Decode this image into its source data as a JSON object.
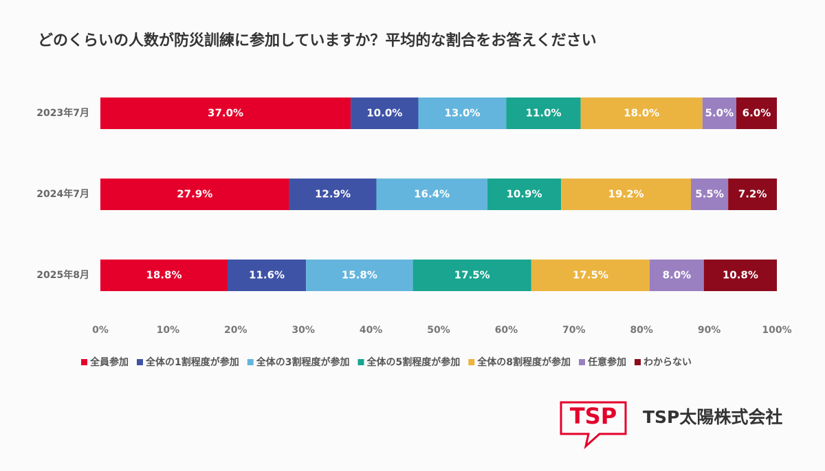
{
  "chart_data": {
    "type": "bar",
    "orientation": "horizontal",
    "stacked": true,
    "title": "どのくらいの人数が防災訓練に参加していますか？平均的な割合をお答えください",
    "categories": [
      "2023年7月",
      "2024年7月",
      "2025年8月"
    ],
    "series": [
      {
        "name": "全員参加",
        "color": "#e4002b",
        "values": [
          37.0,
          27.9,
          18.8
        ],
        "value_labels": [
          "37.0%",
          "27.9%",
          "18.8%"
        ]
      },
      {
        "name": "全体の1割程度が参加",
        "color": "#3f53a6",
        "values": [
          10.0,
          12.9,
          11.6
        ],
        "value_labels": [
          "10.0%",
          "12.9%",
          "11.6%"
        ]
      },
      {
        "name": "全体の3割程度が参加",
        "color": "#64b5dd",
        "values": [
          13.0,
          16.4,
          15.8
        ],
        "value_labels": [
          "13.0%",
          "16.4%",
          "15.8%"
        ]
      },
      {
        "name": "全体の5割程度が参加",
        "color": "#19a58f",
        "values": [
          11.0,
          10.9,
          17.5
        ],
        "value_labels": [
          "11.0%",
          "10.9%",
          "17.5%"
        ]
      },
      {
        "name": "全体の8割程度が参加",
        "color": "#ebb440",
        "values": [
          18.0,
          19.2,
          17.5
        ],
        "value_labels": [
          "18.0%",
          "19.2%",
          "17.5%"
        ]
      },
      {
        "name": "任意参加",
        "color": "#9a80c1",
        "values": [
          5.0,
          5.5,
          8.0
        ],
        "value_labels": [
          "5.0%",
          "5.5%",
          "8.0%"
        ]
      },
      {
        "name": "わからない",
        "color": "#8c0a1c",
        "values": [
          6.0,
          7.2,
          10.8
        ],
        "value_labels": [
          "6.0%",
          "7.2%",
          "10.8%"
        ]
      }
    ],
    "xlim": [
      0,
      100
    ],
    "xticks": [
      {
        "value": 0,
        "label": "0%"
      },
      {
        "value": 10,
        "label": "10%"
      },
      {
        "value": 20,
        "label": "20%"
      },
      {
        "value": 30,
        "label": "30%"
      },
      {
        "value": 40,
        "label": "40%"
      },
      {
        "value": 50,
        "label": "50%"
      },
      {
        "value": 60,
        "label": "60%"
      },
      {
        "value": 70,
        "label": "70%"
      },
      {
        "value": 80,
        "label": "80%"
      },
      {
        "value": 90,
        "label": "90%"
      },
      {
        "value": 100,
        "label": "100%"
      }
    ],
    "legend": "bottom"
  },
  "logo": {
    "mark": "TSP",
    "name": "TSP太陽株式会社"
  }
}
